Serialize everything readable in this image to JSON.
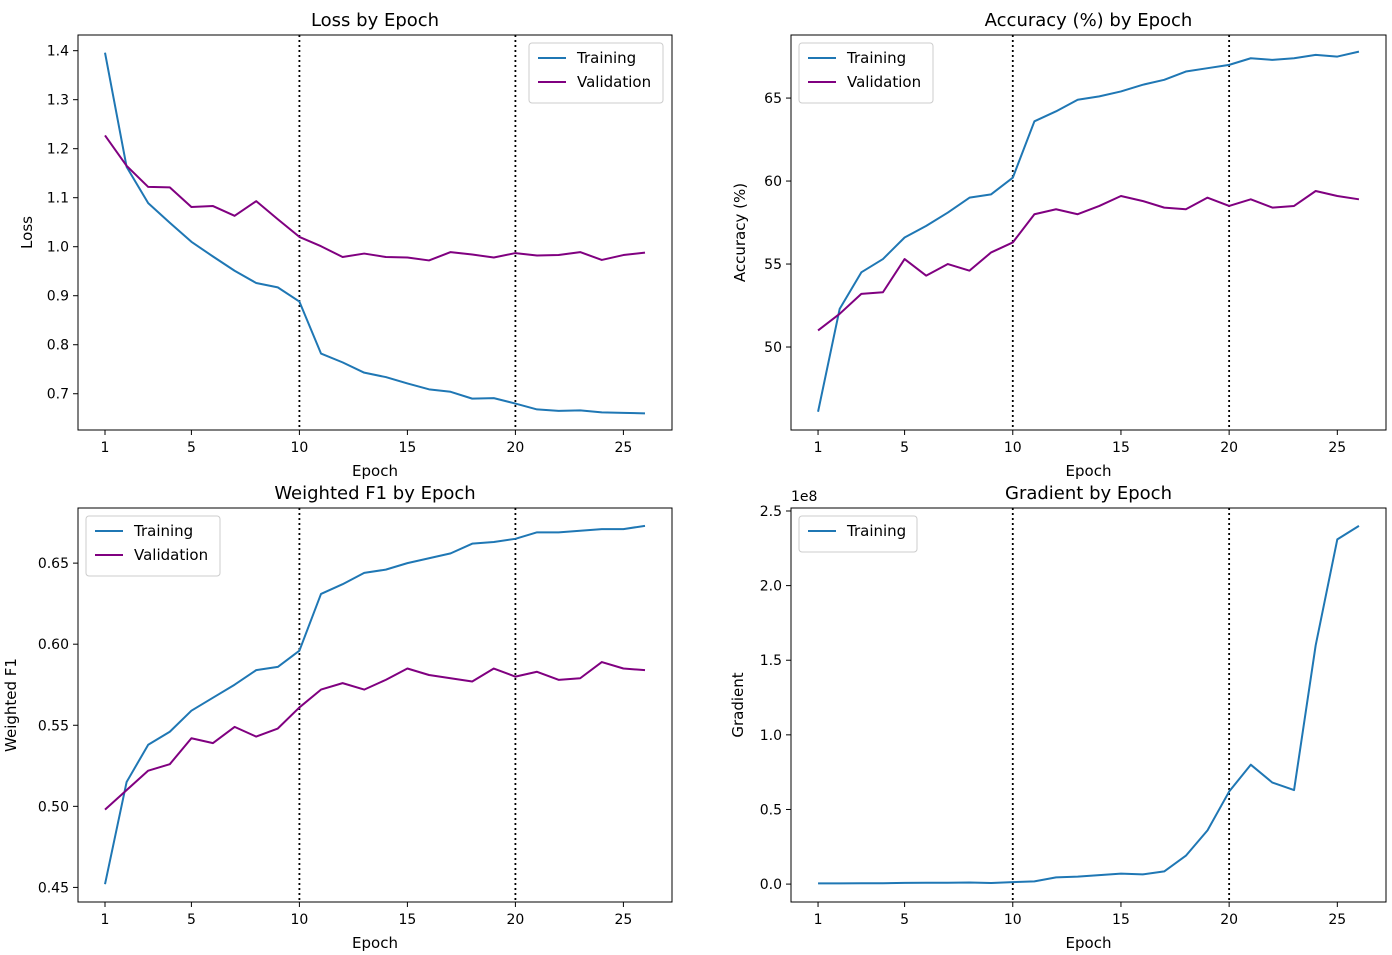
{
  "colors": {
    "training": "#1f77b4",
    "validation": "#800080",
    "marker_line": "#000000",
    "axes": "#000000",
    "legend_border": "#cccccc"
  },
  "chart_data": [
    {
      "type": "line",
      "title": "Loss by Epoch",
      "xlabel": "Epoch",
      "ylabel": "Loss",
      "x": [
        1,
        2,
        3,
        4,
        5,
        6,
        7,
        8,
        9,
        10,
        11,
        12,
        13,
        14,
        15,
        16,
        17,
        18,
        19,
        20,
        21,
        22,
        23,
        24,
        25,
        26
      ],
      "xlim": [
        -0.25,
        27.25
      ],
      "ylim": [
        0.626,
        1.432
      ],
      "xticks": [
        1,
        5,
        10,
        15,
        20,
        25
      ],
      "xtick_labels": [
        "1",
        "5",
        "10",
        "15",
        "20",
        "25"
      ],
      "yticks": [
        0.7,
        0.8,
        0.9,
        1.0,
        1.1,
        1.2,
        1.3,
        1.4
      ],
      "ytick_labels": [
        "0.7",
        "0.8",
        "0.9",
        "1.0",
        "1.1",
        "1.2",
        "1.3",
        "1.4"
      ],
      "vlines": [
        10,
        20
      ],
      "legend": "upper right",
      "series": [
        {
          "name": "Training",
          "color_key": "training",
          "values": [
            1.396,
            1.163,
            1.089,
            1.049,
            1.01,
            0.98,
            0.951,
            0.926,
            0.917,
            0.888,
            0.782,
            0.764,
            0.743,
            0.734,
            0.721,
            0.709,
            0.704,
            0.69,
            0.691,
            0.68,
            0.668,
            0.665,
            0.666,
            0.662,
            0.661,
            0.66
          ]
        },
        {
          "name": "Validation",
          "color_key": "validation",
          "values": [
            1.227,
            1.165,
            1.122,
            1.121,
            1.081,
            1.083,
            1.063,
            1.093,
            1.056,
            1.02,
            1.001,
            0.979,
            0.986,
            0.979,
            0.978,
            0.972,
            0.989,
            0.984,
            0.978,
            0.987,
            0.982,
            0.983,
            0.989,
            0.973,
            0.983,
            0.988
          ]
        }
      ]
    },
    {
      "type": "line",
      "title": "Accuracy (%) by Epoch",
      "xlabel": "Epoch",
      "ylabel": "Accuracy (%)",
      "x": [
        1,
        2,
        3,
        4,
        5,
        6,
        7,
        8,
        9,
        10,
        11,
        12,
        13,
        14,
        15,
        16,
        17,
        18,
        19,
        20,
        21,
        22,
        23,
        24,
        25,
        26
      ],
      "xlim": [
        -0.25,
        27.25
      ],
      "ylim": [
        45.0,
        68.8
      ],
      "xticks": [
        1,
        5,
        10,
        15,
        20,
        25
      ],
      "xtick_labels": [
        "1",
        "5",
        "10",
        "15",
        "20",
        "25"
      ],
      "yticks": [
        50,
        55,
        60,
        65
      ],
      "ytick_labels": [
        "50",
        "55",
        "60",
        "65"
      ],
      "vlines": [
        10,
        20
      ],
      "legend": "upper left",
      "series": [
        {
          "name": "Training",
          "color_key": "training",
          "values": [
            46.1,
            52.3,
            54.5,
            55.3,
            56.6,
            57.3,
            58.1,
            59.0,
            59.2,
            60.2,
            63.6,
            64.2,
            64.9,
            65.1,
            65.4,
            65.8,
            66.1,
            66.6,
            66.8,
            67.0,
            67.4,
            67.3,
            67.4,
            67.6,
            67.5,
            67.8
          ]
        },
        {
          "name": "Validation",
          "color_key": "validation",
          "values": [
            51.0,
            52.0,
            53.2,
            53.3,
            55.3,
            54.3,
            55.0,
            54.6,
            55.7,
            56.3,
            58.0,
            58.3,
            58.0,
            58.5,
            59.1,
            58.8,
            58.4,
            58.3,
            59.0,
            58.5,
            58.9,
            58.4,
            58.5,
            59.4,
            59.1,
            58.9
          ]
        }
      ]
    },
    {
      "type": "line",
      "title": "Weighted F1 by Epoch",
      "xlabel": "Epoch",
      "ylabel": "Weighted F1",
      "x": [
        1,
        2,
        3,
        4,
        5,
        6,
        7,
        8,
        9,
        10,
        11,
        12,
        13,
        14,
        15,
        16,
        17,
        18,
        19,
        20,
        21,
        22,
        23,
        24,
        25,
        26
      ],
      "xlim": [
        -0.25,
        27.25
      ],
      "ylim": [
        0.441,
        0.684
      ],
      "xticks": [
        1,
        5,
        10,
        15,
        20,
        25
      ],
      "xtick_labels": [
        "1",
        "5",
        "10",
        "15",
        "20",
        "25"
      ],
      "yticks": [
        0.45,
        0.5,
        0.55,
        0.6,
        0.65
      ],
      "ytick_labels": [
        "0.45",
        "0.50",
        "0.55",
        "0.60",
        "0.65"
      ],
      "vlines": [
        10,
        20
      ],
      "legend": "upper left",
      "series": [
        {
          "name": "Training",
          "color_key": "training",
          "values": [
            0.452,
            0.515,
            0.538,
            0.546,
            0.559,
            0.567,
            0.575,
            0.584,
            0.586,
            0.596,
            0.631,
            0.637,
            0.644,
            0.646,
            0.65,
            0.653,
            0.656,
            0.662,
            0.663,
            0.665,
            0.669,
            0.669,
            0.67,
            0.671,
            0.671,
            0.673
          ]
        },
        {
          "name": "Validation",
          "color_key": "validation",
          "values": [
            0.498,
            0.51,
            0.522,
            0.526,
            0.542,
            0.539,
            0.549,
            0.543,
            0.548,
            0.561,
            0.572,
            0.576,
            0.572,
            0.578,
            0.585,
            0.581,
            0.579,
            0.577,
            0.585,
            0.58,
            0.583,
            0.578,
            0.579,
            0.589,
            0.585,
            0.584
          ]
        }
      ]
    },
    {
      "type": "line",
      "title": "Gradient by Epoch",
      "xlabel": "Epoch",
      "ylabel": "Gradient",
      "y_offset_label": "1e8",
      "x": [
        1,
        2,
        3,
        4,
        5,
        6,
        7,
        8,
        9,
        10,
        11,
        12,
        13,
        14,
        15,
        16,
        17,
        18,
        19,
        20,
        21,
        22,
        23,
        24,
        25,
        26
      ],
      "xlim": [
        -0.25,
        27.25
      ],
      "ylim": [
        -0.12,
        2.52
      ],
      "xticks": [
        1,
        5,
        10,
        15,
        20,
        25
      ],
      "xtick_labels": [
        "1",
        "5",
        "10",
        "15",
        "20",
        "25"
      ],
      "yticks": [
        0.0,
        0.5,
        1.0,
        1.5,
        2.0,
        2.5
      ],
      "ytick_labels": [
        "0.0",
        "0.5",
        "1.0",
        "1.5",
        "2.0",
        "2.5"
      ],
      "vlines": [
        10,
        20
      ],
      "legend": "upper left",
      "series": [
        {
          "name": "Training",
          "color_key": "training",
          "values": [
            0.005,
            0.005,
            0.006,
            0.006,
            0.008,
            0.009,
            0.009,
            0.011,
            0.007,
            0.013,
            0.018,
            0.045,
            0.05,
            0.06,
            0.07,
            0.065,
            0.085,
            0.19,
            0.36,
            0.62,
            0.8,
            0.68,
            0.63,
            1.6,
            2.31,
            2.4
          ]
        }
      ]
    }
  ]
}
